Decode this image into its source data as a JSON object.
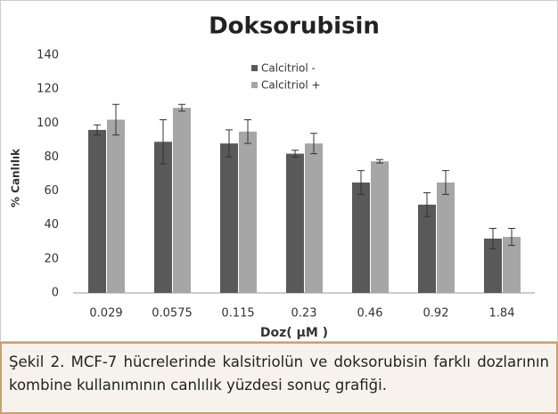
{
  "chart_data": {
    "type": "bar",
    "title": "Doksorubisin",
    "categories": [
      "0.029",
      "0.0575",
      "0.115",
      "0.23",
      "0.46",
      "0.92",
      "1.84"
    ],
    "series": [
      {
        "name": "Calcitriol -",
        "color": "#595959",
        "values": [
          96,
          89,
          88,
          82,
          65,
          52,
          32
        ],
        "errors": [
          3,
          13,
          8,
          2,
          7,
          7,
          6
        ]
      },
      {
        "name": "Calcitriol +",
        "color": "#a6a6a6",
        "values": [
          102,
          109,
          95,
          88,
          77.5,
          65,
          33
        ],
        "errors": [
          9,
          2,
          7,
          6,
          1,
          7,
          5
        ]
      }
    ],
    "xlabel": "Doz( µM )",
    "ylabel": "% Canlılık",
    "ylim": [
      0,
      140
    ],
    "yticks": [
      0,
      20,
      40,
      60,
      80,
      100,
      120,
      140
    ],
    "grid": false,
    "legend": "top"
  },
  "caption": "Şekil 2. MCF-7 hücrelerinde kalsitriolün ve doksorubisin farklı dozlarının kombine kullanımının canlılık yüzdesi sonuç grafiği."
}
